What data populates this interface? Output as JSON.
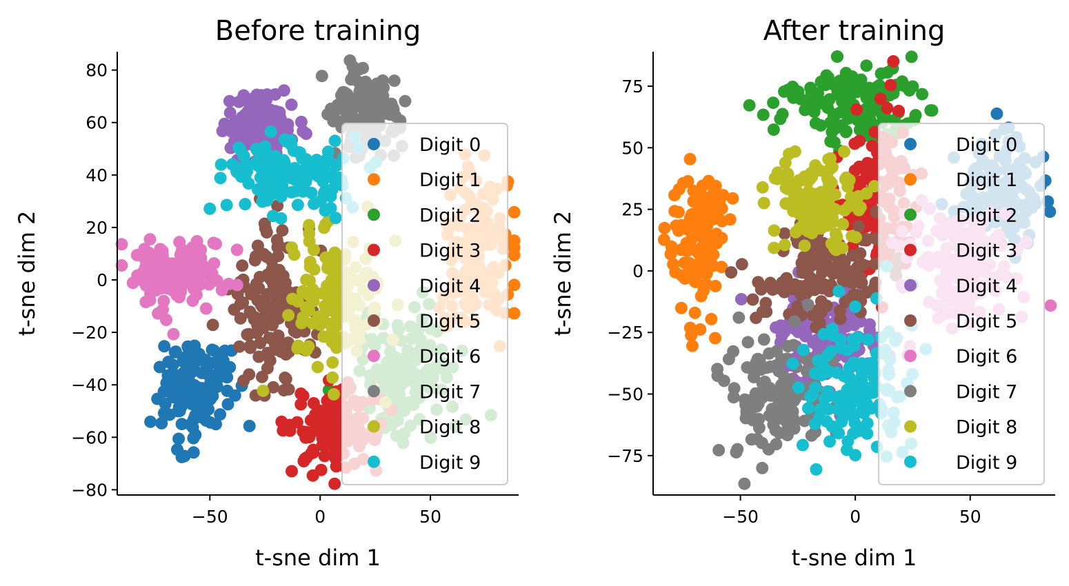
{
  "chart_data": [
    {
      "type": "scatter",
      "title": "Before training",
      "xlabel": "t-sne dim 1",
      "ylabel": "t-sne dim 2",
      "xlim": [
        -92,
        90
      ],
      "ylim": [
        -82,
        87
      ],
      "xticks": [
        -50,
        0,
        50
      ],
      "xtick_labels": [
        "−50",
        "0",
        "50"
      ],
      "yticks": [
        -80,
        -60,
        -40,
        -20,
        0,
        20,
        40,
        60,
        80
      ],
      "ytick_labels": [
        "−80",
        "−60",
        "−40",
        "−20",
        "0",
        "20",
        "40",
        "60",
        "80"
      ],
      "grid": false,
      "legend_position": "right",
      "series": [
        {
          "name": "Digit 0",
          "color": "#1f77b4",
          "cx": -57,
          "cy": -42,
          "sx": 8,
          "sy": 9
        },
        {
          "name": "Digit 1",
          "color": "#ff7f0e",
          "cx": 70,
          "cy": 10,
          "sx": 8,
          "sy": 16
        },
        {
          "name": "Digit 2",
          "color": "#2ca02c",
          "cx": 40,
          "cy": -35,
          "sx": 12,
          "sy": 12
        },
        {
          "name": "Digit 3",
          "color": "#d62728",
          "cx": 7,
          "cy": -57,
          "sx": 10,
          "sy": 8
        },
        {
          "name": "Digit 4",
          "color": "#9467bd",
          "cx": -26,
          "cy": 58,
          "sx": 8,
          "sy": 6
        },
        {
          "name": "Digit 5",
          "color": "#8c564b",
          "cx": -20,
          "cy": -10,
          "sx": 10,
          "sy": 16
        },
        {
          "name": "Digit 6",
          "color": "#e377c2",
          "cx": -65,
          "cy": 2,
          "sx": 10,
          "sy": 7
        },
        {
          "name": "Digit 7",
          "color": "#7f7f7f",
          "cx": 19,
          "cy": 64,
          "sx": 8,
          "sy": 8
        },
        {
          "name": "Digit 8",
          "color": "#bcbd22",
          "cx": 8,
          "cy": -8,
          "sx": 12,
          "sy": 14
        },
        {
          "name": "Digit 9",
          "color": "#17becf",
          "cx": -15,
          "cy": 40,
          "sx": 15,
          "sy": 6
        }
      ]
    },
    {
      "type": "scatter",
      "title": "After training",
      "xlabel": "t-sne dim 1",
      "ylabel": "t-sne dim 2",
      "xlim": [
        -88,
        87
      ],
      "ylim": [
        -91,
        89
      ],
      "xticks": [
        -50,
        0,
        50
      ],
      "xtick_labels": [
        "−50",
        "0",
        "50"
      ],
      "yticks": [
        -75,
        -50,
        -25,
        0,
        25,
        50,
        75
      ],
      "ytick_labels": [
        "−75",
        "−50",
        "−25",
        "0",
        "25",
        "50",
        "75"
      ],
      "grid": false,
      "legend_position": "right",
      "series": [
        {
          "name": "Digit 0",
          "color": "#1f77b4",
          "cx": 62,
          "cy": 30,
          "sx": 9,
          "sy": 11
        },
        {
          "name": "Digit 1",
          "color": "#ff7f0e",
          "cx": -68,
          "cy": 14,
          "sx": 6,
          "sy": 15
        },
        {
          "name": "Digit 2",
          "color": "#2ca02c",
          "cx": -2,
          "cy": 68,
          "sx": 15,
          "sy": 8
        },
        {
          "name": "Digit 3",
          "color": "#d62728",
          "cx": 8,
          "cy": 28,
          "sx": 8,
          "sy": 18
        },
        {
          "name": "Digit 4",
          "color": "#9467bd",
          "cx": -12,
          "cy": -27,
          "sx": 12,
          "sy": 10
        },
        {
          "name": "Digit 5",
          "color": "#8c564b",
          "cx": -17,
          "cy": -2,
          "sx": 14,
          "sy": 10
        },
        {
          "name": "Digit 6",
          "color": "#e377c2",
          "cx": 48,
          "cy": 2,
          "sx": 13,
          "sy": 12
        },
        {
          "name": "Digit 7",
          "color": "#7f7f7f",
          "cx": -32,
          "cy": -52,
          "sx": 11,
          "sy": 14
        },
        {
          "name": "Digit 8",
          "color": "#bcbd22",
          "cx": -18,
          "cy": 28,
          "sx": 10,
          "sy": 9
        },
        {
          "name": "Digit 9",
          "color": "#17becf",
          "cx": 2,
          "cy": -48,
          "sx": 12,
          "sy": 14
        }
      ]
    }
  ]
}
